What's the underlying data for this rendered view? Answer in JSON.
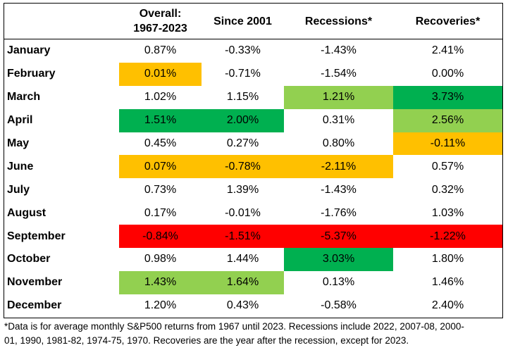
{
  "headers": [
    "",
    "Overall:\n1967-2023",
    "Since 2001",
    "Recessions*",
    "Recoveries*"
  ],
  "header_line1": "Overall:",
  "header_line2": "1967-2023",
  "colors": {
    "orange": "#FFC000",
    "light_green": "#92D050",
    "dark_green": "#00B050",
    "red": "#FF0000",
    "none": "transparent"
  },
  "rows": [
    {
      "month": "January",
      "values": [
        "0.87%",
        "-0.33%",
        "-1.43%",
        "2.41%"
      ],
      "fills": [
        "none",
        "none",
        "none",
        "none"
      ]
    },
    {
      "month": "February",
      "values": [
        "0.01%",
        "-0.71%",
        "-1.54%",
        "0.00%"
      ],
      "fills": [
        "orange",
        "none",
        "none",
        "none"
      ]
    },
    {
      "month": "March",
      "values": [
        "1.02%",
        "1.15%",
        "1.21%",
        "3.73%"
      ],
      "fills": [
        "none",
        "none",
        "light_green",
        "dark_green"
      ]
    },
    {
      "month": "April",
      "values": [
        "1.51%",
        "2.00%",
        "0.31%",
        "2.56%"
      ],
      "fills": [
        "dark_green",
        "dark_green",
        "none",
        "light_green"
      ]
    },
    {
      "month": "May",
      "values": [
        "0.45%",
        "0.27%",
        "0.80%",
        "-0.11%"
      ],
      "fills": [
        "none",
        "none",
        "none",
        "orange"
      ]
    },
    {
      "month": "June",
      "values": [
        "0.07%",
        "-0.78%",
        "-2.11%",
        "0.57%"
      ],
      "fills": [
        "orange",
        "orange",
        "orange",
        "none"
      ]
    },
    {
      "month": "July",
      "values": [
        "0.73%",
        "1.39%",
        "-1.43%",
        "0.32%"
      ],
      "fills": [
        "none",
        "none",
        "none",
        "none"
      ]
    },
    {
      "month": "August",
      "values": [
        "0.17%",
        "-0.01%",
        "-1.76%",
        "1.03%"
      ],
      "fills": [
        "none",
        "none",
        "none",
        "none"
      ]
    },
    {
      "month": "September",
      "values": [
        "-0.84%",
        "-1.51%",
        "-5.37%",
        "-1.22%"
      ],
      "fills": [
        "red",
        "red",
        "red",
        "red"
      ]
    },
    {
      "month": "October",
      "values": [
        "0.98%",
        "1.44%",
        "3.03%",
        "1.80%"
      ],
      "fills": [
        "none",
        "none",
        "dark_green",
        "none"
      ]
    },
    {
      "month": "November",
      "values": [
        "1.43%",
        "1.64%",
        "0.13%",
        "1.46%"
      ],
      "fills": [
        "light_green",
        "light_green",
        "none",
        "none"
      ]
    },
    {
      "month": "December",
      "values": [
        "1.20%",
        "0.43%",
        "-0.58%",
        "2.40%"
      ],
      "fills": [
        "none",
        "none",
        "none",
        "none"
      ]
    }
  ],
  "footnote_line1": "*Data is for average monthly S&P500 returns from 1967 until 2023. Recessions include 2022, 2007-08, 2000-",
  "footnote_line2": "01, 1990, 1981-82, 1974-75, 1970. Recoveries are the year after the recession, except for 2023."
}
